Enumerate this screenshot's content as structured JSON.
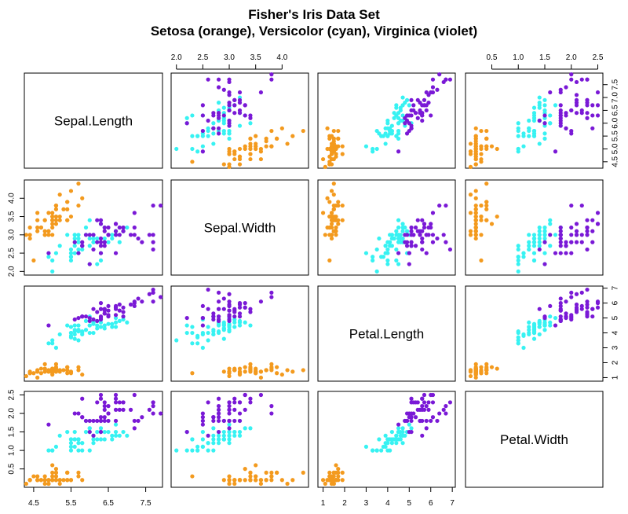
{
  "title": {
    "line1": "Fisher's Iris Data Set",
    "line2": "Setosa (orange), Versicolor (cyan), Virginica (violet)"
  },
  "colors": {
    "setosa": "#F39A1E",
    "versicolor": "#37F2F2",
    "virginica": "#7A19D6",
    "frame": "#000000"
  },
  "chart_data": {
    "type": "scatter",
    "layout": "scatterplot-matrix",
    "variables": [
      "Sepal.Length",
      "Sepal.Width",
      "Petal.Length",
      "Petal.Width"
    ],
    "axes": [
      {
        "name": "Sepal.Length",
        "lim": [
          4.25,
          7.95
        ],
        "ticks": [
          4.5,
          5.5,
          6.5,
          7.5
        ],
        "extra_ticks": [
          5.0,
          6.0,
          7.0
        ],
        "tick_labels": [
          "4.5",
          "5.5",
          "6.5",
          "7.5"
        ],
        "extra_tick_labels": [
          "5.0",
          "6.0",
          "7.0"
        ]
      },
      {
        "name": "Sepal.Width",
        "lim": [
          1.9,
          4.5
        ],
        "ticks": [
          2.0,
          2.5,
          3.0,
          3.5,
          4.0
        ],
        "tick_labels": [
          "2.0",
          "2.5",
          "3.0",
          "3.5",
          "4.0"
        ]
      },
      {
        "name": "Petal.Length",
        "lim": [
          0.76,
          7.14
        ],
        "ticks": [
          1,
          2,
          3,
          4,
          5,
          6,
          7
        ],
        "tick_labels": [
          "1",
          "2",
          "3",
          "4",
          "5",
          "6",
          "7"
        ]
      },
      {
        "name": "Petal.Width",
        "lim": [
          0.004,
          2.596
        ],
        "ticks": [
          0.5,
          1.0,
          1.5,
          2.0,
          2.5
        ],
        "tick_labels": [
          "0.5",
          "1.0",
          "1.5",
          "2.0",
          "2.5"
        ]
      }
    ],
    "series": [
      {
        "name": "setosa",
        "color_key": "setosa",
        "points": [
          [
            5.1,
            3.5,
            1.4,
            0.2
          ],
          [
            4.9,
            3.0,
            1.4,
            0.2
          ],
          [
            4.7,
            3.2,
            1.3,
            0.2
          ],
          [
            4.6,
            3.1,
            1.5,
            0.2
          ],
          [
            5.0,
            3.6,
            1.4,
            0.2
          ],
          [
            5.4,
            3.9,
            1.7,
            0.4
          ],
          [
            4.6,
            3.4,
            1.4,
            0.3
          ],
          [
            5.0,
            3.4,
            1.5,
            0.2
          ],
          [
            4.4,
            2.9,
            1.4,
            0.2
          ],
          [
            4.9,
            3.1,
            1.5,
            0.1
          ],
          [
            5.4,
            3.7,
            1.5,
            0.2
          ],
          [
            4.8,
            3.4,
            1.6,
            0.2
          ],
          [
            4.8,
            3.0,
            1.4,
            0.1
          ],
          [
            4.3,
            3.0,
            1.1,
            0.1
          ],
          [
            5.8,
            4.0,
            1.2,
            0.2
          ],
          [
            5.7,
            4.4,
            1.5,
            0.4
          ],
          [
            5.4,
            3.9,
            1.3,
            0.4
          ],
          [
            5.1,
            3.5,
            1.4,
            0.3
          ],
          [
            5.7,
            3.8,
            1.7,
            0.3
          ],
          [
            5.1,
            3.8,
            1.5,
            0.3
          ],
          [
            5.4,
            3.4,
            1.7,
            0.2
          ],
          [
            5.1,
            3.7,
            1.5,
            0.4
          ],
          [
            4.6,
            3.6,
            1.0,
            0.2
          ],
          [
            5.1,
            3.3,
            1.7,
            0.5
          ],
          [
            4.8,
            3.4,
            1.9,
            0.2
          ],
          [
            5.0,
            3.0,
            1.6,
            0.2
          ],
          [
            5.0,
            3.4,
            1.6,
            0.4
          ],
          [
            5.2,
            3.5,
            1.5,
            0.2
          ],
          [
            5.2,
            3.4,
            1.4,
            0.2
          ],
          [
            4.7,
            3.2,
            1.6,
            0.2
          ],
          [
            4.8,
            3.1,
            1.6,
            0.2
          ],
          [
            5.4,
            3.4,
            1.5,
            0.4
          ],
          [
            5.2,
            4.1,
            1.5,
            0.1
          ],
          [
            5.5,
            4.2,
            1.4,
            0.2
          ],
          [
            4.9,
            3.1,
            1.5,
            0.2
          ],
          [
            5.0,
            3.2,
            1.2,
            0.2
          ],
          [
            5.5,
            3.5,
            1.3,
            0.2
          ],
          [
            4.9,
            3.6,
            1.4,
            0.1
          ],
          [
            4.4,
            3.0,
            1.3,
            0.2
          ],
          [
            5.1,
            3.4,
            1.5,
            0.2
          ],
          [
            5.0,
            3.5,
            1.3,
            0.3
          ],
          [
            4.5,
            2.3,
            1.3,
            0.3
          ],
          [
            4.4,
            3.2,
            1.3,
            0.2
          ],
          [
            5.0,
            3.5,
            1.6,
            0.6
          ],
          [
            5.1,
            3.8,
            1.9,
            0.4
          ],
          [
            4.8,
            3.0,
            1.4,
            0.3
          ],
          [
            5.1,
            3.8,
            1.6,
            0.2
          ],
          [
            4.6,
            3.2,
            1.4,
            0.2
          ],
          [
            5.3,
            3.7,
            1.5,
            0.2
          ],
          [
            5.0,
            3.3,
            1.4,
            0.2
          ]
        ]
      },
      {
        "name": "versicolor",
        "color_key": "versicolor",
        "points": [
          [
            7.0,
            3.2,
            4.7,
            1.4
          ],
          [
            6.4,
            3.2,
            4.5,
            1.5
          ],
          [
            6.9,
            3.1,
            4.9,
            1.5
          ],
          [
            5.5,
            2.3,
            4.0,
            1.3
          ],
          [
            6.5,
            2.8,
            4.6,
            1.5
          ],
          [
            5.7,
            2.8,
            4.5,
            1.3
          ],
          [
            6.3,
            3.3,
            4.7,
            1.6
          ],
          [
            4.9,
            2.4,
            3.3,
            1.0
          ],
          [
            6.6,
            2.9,
            4.6,
            1.3
          ],
          [
            5.2,
            2.7,
            3.9,
            1.4
          ],
          [
            5.0,
            2.0,
            3.5,
            1.0
          ],
          [
            5.9,
            3.0,
            4.2,
            1.5
          ],
          [
            6.0,
            2.2,
            4.0,
            1.0
          ],
          [
            6.1,
            2.9,
            4.7,
            1.4
          ],
          [
            5.6,
            2.9,
            3.6,
            1.3
          ],
          [
            6.7,
            3.1,
            4.4,
            1.4
          ],
          [
            5.6,
            3.0,
            4.5,
            1.5
          ],
          [
            5.8,
            2.7,
            4.1,
            1.0
          ],
          [
            6.2,
            2.2,
            4.5,
            1.5
          ],
          [
            5.6,
            2.5,
            3.9,
            1.1
          ],
          [
            5.9,
            3.2,
            4.8,
            1.8
          ],
          [
            6.1,
            2.8,
            4.0,
            1.3
          ],
          [
            6.3,
            2.5,
            4.9,
            1.5
          ],
          [
            6.1,
            2.8,
            4.7,
            1.2
          ],
          [
            6.4,
            2.9,
            4.3,
            1.3
          ],
          [
            6.6,
            3.0,
            4.4,
            1.4
          ],
          [
            6.8,
            2.8,
            4.8,
            1.4
          ],
          [
            6.7,
            3.0,
            5.0,
            1.7
          ],
          [
            6.0,
            2.9,
            4.5,
            1.5
          ],
          [
            5.7,
            2.6,
            3.5,
            1.0
          ],
          [
            5.5,
            2.4,
            3.8,
            1.1
          ],
          [
            5.5,
            2.4,
            3.7,
            1.0
          ],
          [
            5.8,
            2.7,
            3.9,
            1.2
          ],
          [
            6.0,
            2.7,
            5.1,
            1.6
          ],
          [
            5.4,
            3.0,
            4.5,
            1.5
          ],
          [
            6.0,
            3.4,
            4.5,
            1.6
          ],
          [
            6.7,
            3.1,
            4.7,
            1.5
          ],
          [
            6.3,
            2.3,
            4.4,
            1.3
          ],
          [
            5.6,
            3.0,
            4.1,
            1.3
          ],
          [
            5.5,
            2.5,
            4.0,
            1.3
          ],
          [
            5.5,
            2.6,
            4.4,
            1.2
          ],
          [
            6.1,
            3.0,
            4.6,
            1.4
          ],
          [
            5.8,
            2.6,
            4.0,
            1.2
          ],
          [
            5.0,
            2.3,
            3.3,
            1.0
          ],
          [
            5.6,
            2.7,
            4.2,
            1.3
          ],
          [
            5.7,
            3.0,
            4.2,
            1.2
          ],
          [
            5.7,
            2.9,
            4.2,
            1.3
          ],
          [
            6.2,
            2.9,
            4.3,
            1.3
          ],
          [
            5.1,
            2.5,
            3.0,
            1.1
          ],
          [
            5.7,
            2.8,
            4.1,
            1.3
          ]
        ]
      },
      {
        "name": "virginica",
        "color_key": "virginica",
        "points": [
          [
            6.3,
            3.3,
            6.0,
            2.5
          ],
          [
            5.8,
            2.7,
            5.1,
            1.9
          ],
          [
            7.1,
            3.0,
            5.9,
            2.1
          ],
          [
            6.3,
            2.9,
            5.6,
            1.8
          ],
          [
            6.5,
            3.0,
            5.8,
            2.2
          ],
          [
            7.6,
            3.0,
            6.6,
            2.1
          ],
          [
            4.9,
            2.5,
            4.5,
            1.7
          ],
          [
            7.3,
            2.9,
            6.3,
            1.8
          ],
          [
            6.7,
            2.5,
            5.8,
            1.8
          ],
          [
            7.2,
            3.6,
            6.1,
            2.5
          ],
          [
            6.5,
            3.2,
            5.1,
            2.0
          ],
          [
            6.4,
            2.7,
            5.3,
            1.9
          ],
          [
            6.8,
            3.0,
            5.5,
            2.1
          ],
          [
            5.7,
            2.5,
            5.0,
            2.0
          ],
          [
            5.8,
            2.8,
            5.1,
            2.4
          ],
          [
            6.4,
            3.2,
            5.3,
            2.3
          ],
          [
            6.5,
            3.0,
            5.5,
            1.8
          ],
          [
            7.7,
            3.8,
            6.7,
            2.2
          ],
          [
            7.7,
            2.6,
            6.9,
            2.3
          ],
          [
            6.0,
            2.2,
            5.0,
            1.5
          ],
          [
            6.9,
            3.2,
            5.7,
            2.3
          ],
          [
            5.6,
            2.8,
            4.9,
            2.0
          ],
          [
            7.7,
            2.8,
            6.7,
            2.0
          ],
          [
            6.3,
            2.7,
            4.9,
            1.8
          ],
          [
            6.7,
            3.3,
            5.7,
            2.1
          ],
          [
            7.2,
            3.2,
            6.0,
            1.8
          ],
          [
            6.2,
            2.8,
            4.8,
            1.8
          ],
          [
            6.1,
            3.0,
            4.9,
            1.8
          ],
          [
            6.4,
            2.8,
            5.6,
            2.1
          ],
          [
            7.2,
            3.0,
            5.8,
            1.6
          ],
          [
            7.4,
            2.8,
            6.1,
            1.9
          ],
          [
            7.9,
            3.8,
            6.4,
            2.0
          ],
          [
            6.4,
            2.8,
            5.6,
            2.2
          ],
          [
            6.3,
            2.8,
            5.1,
            1.5
          ],
          [
            6.1,
            2.6,
            5.6,
            1.4
          ],
          [
            7.7,
            3.0,
            6.1,
            2.3
          ],
          [
            6.3,
            3.4,
            5.6,
            2.4
          ],
          [
            6.4,
            3.1,
            5.5,
            1.8
          ],
          [
            6.0,
            3.0,
            4.8,
            1.8
          ],
          [
            6.9,
            3.1,
            5.4,
            2.1
          ],
          [
            6.7,
            3.1,
            5.6,
            2.4
          ],
          [
            6.9,
            3.1,
            5.1,
            2.3
          ],
          [
            5.8,
            2.7,
            5.1,
            1.9
          ],
          [
            6.8,
            3.2,
            5.9,
            2.3
          ],
          [
            6.7,
            3.3,
            5.7,
            2.5
          ],
          [
            6.7,
            3.0,
            5.2,
            2.3
          ],
          [
            6.3,
            2.5,
            5.0,
            1.9
          ],
          [
            6.5,
            3.0,
            5.2,
            2.0
          ],
          [
            6.2,
            3.4,
            5.4,
            2.3
          ],
          [
            5.9,
            3.0,
            5.1,
            1.8
          ]
        ]
      }
    ]
  }
}
